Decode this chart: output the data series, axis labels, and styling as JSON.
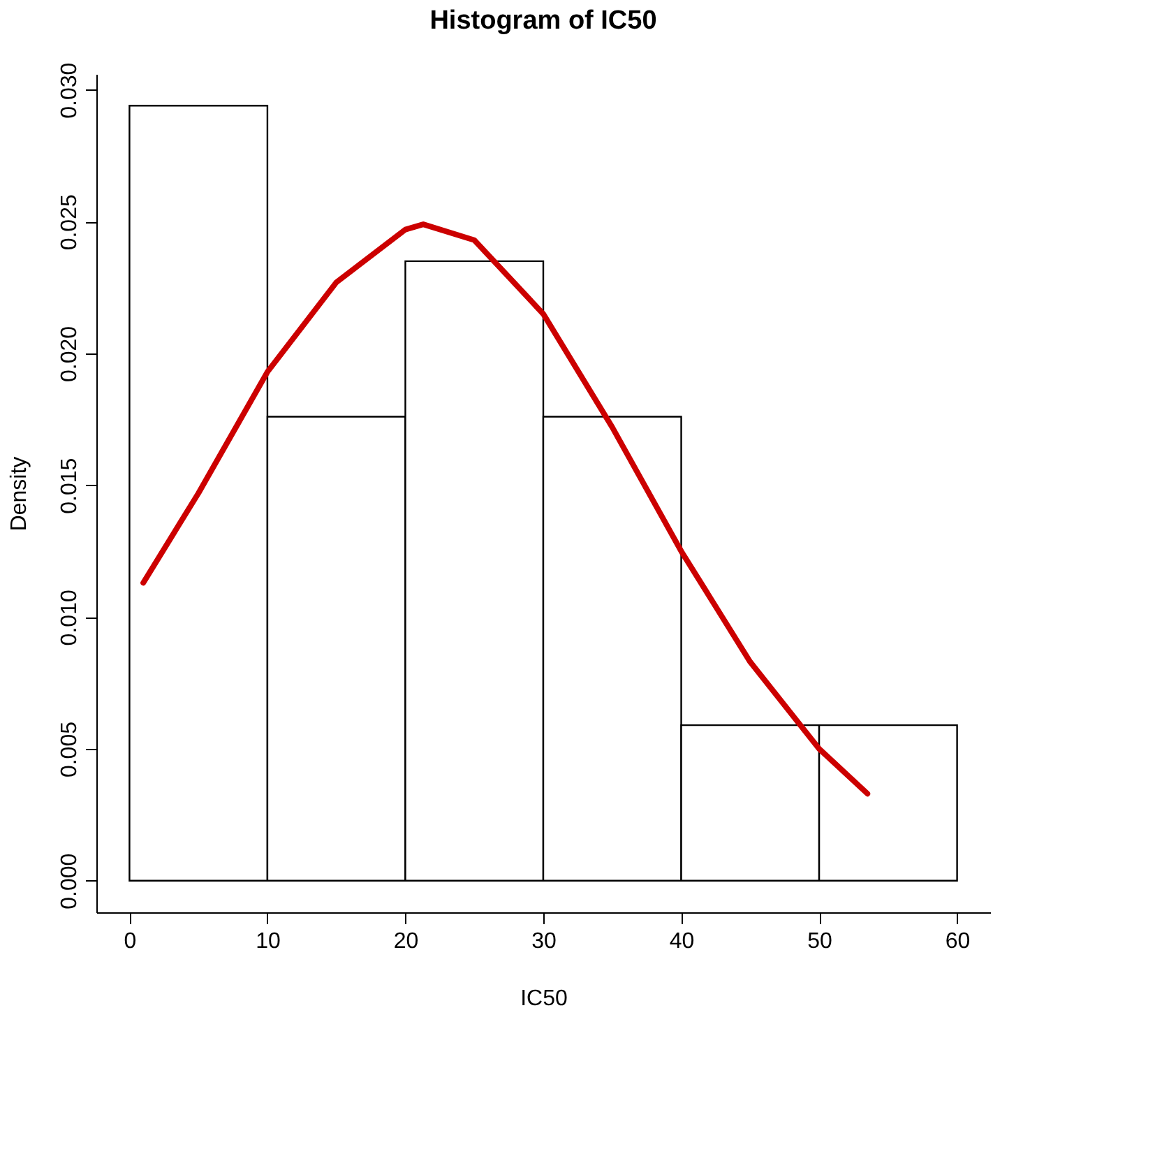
{
  "chart_data": {
    "type": "histogram",
    "title": "Histogram of IC50",
    "xlabel": "IC50",
    "ylabel": "Density",
    "series": [
      {
        "bins": [
          0,
          10,
          20,
          30,
          40,
          50,
          60
        ],
        "values": [
          0.0294,
          0.0176,
          0.0235,
          0.0176,
          0.0059,
          0.0059
        ],
        "color": "#ffffff"
      },
      {
        "type": "line",
        "x": [
          1,
          5,
          10,
          15,
          20,
          21.3,
          25,
          30,
          35,
          40,
          45,
          50,
          53.5
        ],
        "values": [
          0.0113,
          0.0147,
          0.0193,
          0.0227,
          0.0247,
          0.0249,
          0.0243,
          0.0215,
          0.0172,
          0.0125,
          0.0083,
          0.005,
          0.0033
        ],
        "color": "#cc0000"
      }
    ],
    "xlim": [
      -2.4,
      62.4
    ],
    "ylim": [
      -0.0012,
      0.0306
    ],
    "xticks": [
      0,
      10,
      20,
      30,
      40,
      50,
      60
    ],
    "yticks": [
      {
        "value": 0,
        "label": "0.000"
      },
      {
        "value": 0.005,
        "label": "0.005"
      },
      {
        "value": 0.01,
        "label": "0.010"
      },
      {
        "value": 0.015,
        "label": "0.015"
      },
      {
        "value": 0.02,
        "label": "0.020"
      },
      {
        "value": 0.025,
        "label": "0.025"
      },
      {
        "value": 0.03,
        "label": "0.030"
      }
    ],
    "grid": false
  }
}
